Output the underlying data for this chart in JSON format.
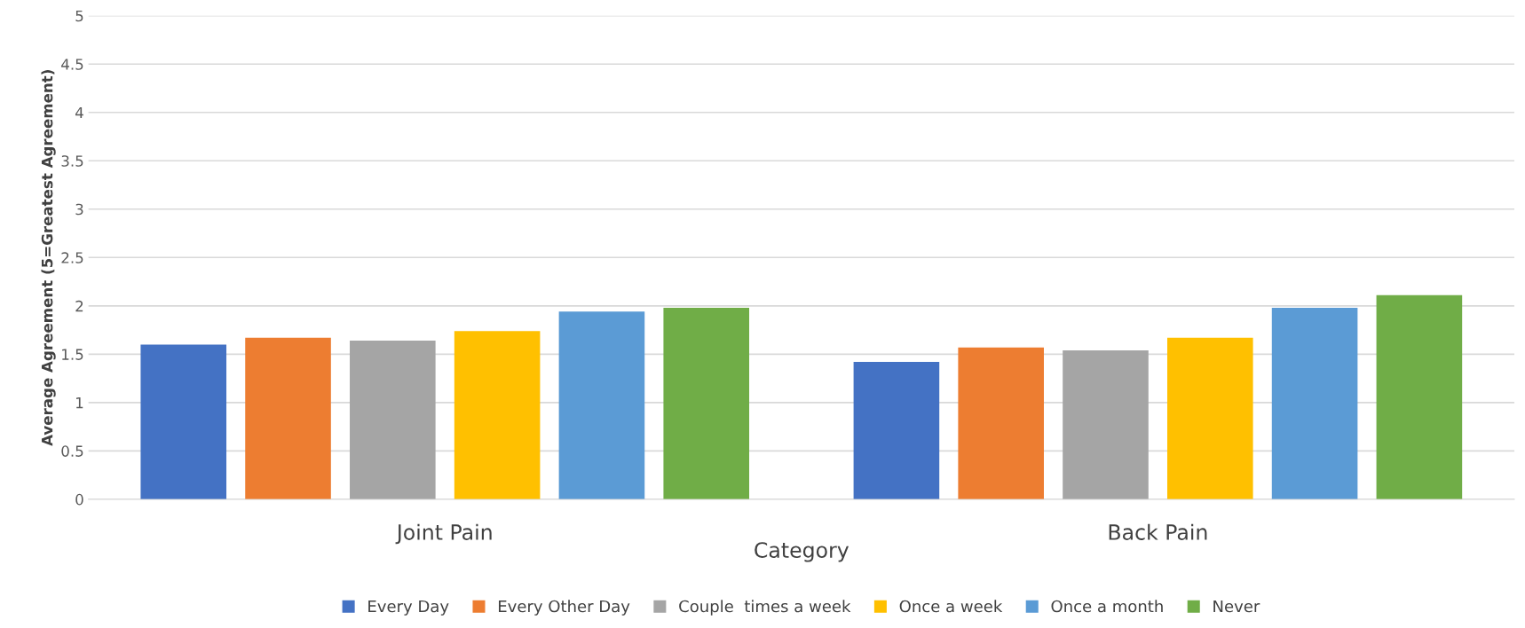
{
  "chart_data": {
    "type": "bar",
    "xlabel": "Category",
    "ylabel": "Average Agreement (5=Greatest Agreement)",
    "categories": [
      "Joint Pain",
      "Back Pain"
    ],
    "series": [
      {
        "name": "Every Day",
        "color": "#4472c4",
        "values": [
          1.6,
          1.42
        ]
      },
      {
        "name": "Every Other Day",
        "color": "#ed7d31",
        "values": [
          1.67,
          1.57
        ]
      },
      {
        "name": "Couple  times a week",
        "color": "#a5a5a5",
        "values": [
          1.64,
          1.54
        ]
      },
      {
        "name": "Once a week",
        "color": "#ffc000",
        "values": [
          1.74,
          1.67
        ]
      },
      {
        "name": "Once a month",
        "color": "#5b9bd5",
        "values": [
          1.94,
          1.98
        ]
      },
      {
        "name": "Never",
        "color": "#70ad47",
        "values": [
          1.98,
          2.11
        ]
      }
    ],
    "ylim": [
      0,
      5
    ],
    "yticks": [
      0,
      0.5,
      1,
      1.5,
      2,
      2.5,
      3,
      3.5,
      4,
      4.5,
      5
    ],
    "grid": "y",
    "legend": "bottom"
  }
}
